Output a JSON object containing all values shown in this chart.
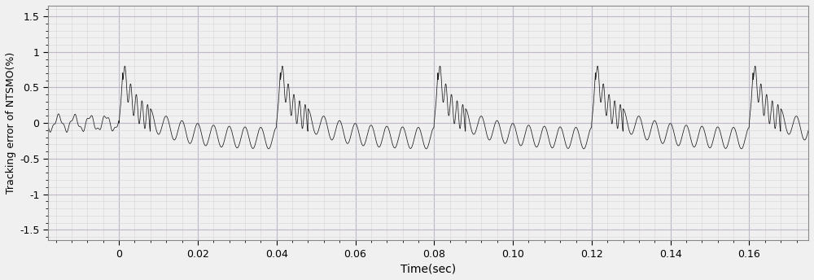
{
  "xlabel": "Time(sec)",
  "ylabel": "Tracking error of NTSMO(%)",
  "xlim": [
    -0.018,
    0.175
  ],
  "ylim": [
    -1.65,
    1.65
  ],
  "xticks": [
    0,
    0.02,
    0.04,
    0.06,
    0.08,
    0.1,
    0.12,
    0.14,
    0.16
  ],
  "yticks": [
    -1.5,
    -1.0,
    -0.5,
    0,
    0.5,
    1.0,
    1.5
  ],
  "line_color": "#1a1a1a",
  "background_color": "#f0f0f0",
  "grid_color_major": "#c0b8c8",
  "grid_color_minor": "#dcd8e0",
  "period": 0.04,
  "total_time": 0.178,
  "dt": 5e-05
}
